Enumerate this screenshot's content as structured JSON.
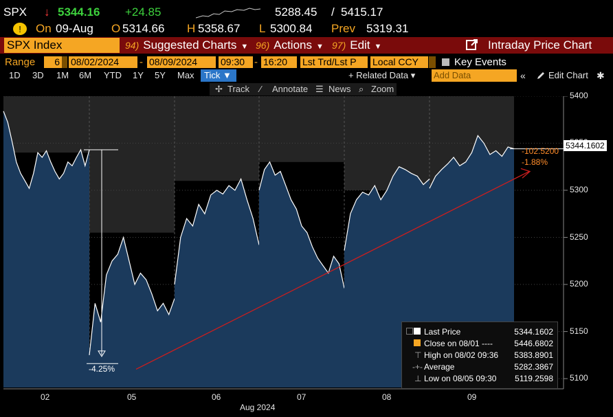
{
  "header": {
    "ticker": "SPX",
    "arrow": "↓",
    "last": "5344.16",
    "change": "+24.85",
    "range_low": "5288.45",
    "separator": "/",
    "range_high": "5415.17",
    "status_label": "On",
    "date": "09-Aug",
    "open_label": "O",
    "open": "5314.66",
    "high_label": "H",
    "high": "5358.67",
    "low_label": "L",
    "low": "5300.84",
    "prev_label": "Prev",
    "prev": "5319.31"
  },
  "menu": {
    "security": "SPX Index",
    "suggested": {
      "num": "94)",
      "label": "Suggested Charts"
    },
    "actions": {
      "num": "96)",
      "label": "Actions"
    },
    "edit": {
      "num": "97)",
      "label": "Edit"
    },
    "title": "Intraday Price Chart"
  },
  "options": {
    "range_label": "Range",
    "range_value": "6",
    "start_date": "08/02/2024",
    "dash": "-",
    "end_date": "08/09/2024",
    "start_time": "09:30",
    "end_time": "16:20",
    "price_type": "Lst Trd/Lst P",
    "currency": "Local CCY",
    "key_events": "Key Events"
  },
  "periods": [
    "1D",
    "3D",
    "1M",
    "6M",
    "YTD",
    "1Y",
    "5Y",
    "Max"
  ],
  "tick_button": "Tick ▼",
  "related_data": "+ Related Data ▾",
  "add_data_placeholder": "Add Data",
  "edit_chart": "Edit Chart",
  "tools": {
    "track": "Track",
    "annotate": "Annotate",
    "news": "News",
    "zoom": "Zoom"
  },
  "annotations": {
    "last_price_tag": "5344.1602",
    "change_pts": "-102.5200",
    "change_pct": "-1.88%",
    "drop_pct": "-4.25%"
  },
  "legend": {
    "last_price": {
      "label": "Last Price",
      "value": "5344.1602"
    },
    "close": {
      "label": "Close on 08/01 ----",
      "value": "5446.6802"
    },
    "high": {
      "label": "High on 08/02 09:36",
      "value": "5383.8901"
    },
    "average": {
      "label": "Average",
      "value": "5282.3867"
    },
    "low": {
      "label": "Low on 08/05 09:30",
      "value": "5119.2598"
    }
  },
  "chart_data": {
    "type": "area",
    "xlabel": "Aug 2024",
    "x_ticks": [
      "02",
      "05",
      "06",
      "07",
      "08",
      "09"
    ],
    "y_ticks": [
      5100,
      5150,
      5200,
      5250,
      5300,
      5350,
      5400
    ],
    "ylim": [
      5095,
      5405
    ],
    "days": [
      {
        "day": "02",
        "values": [
          5384,
          5372,
          5352,
          5330,
          5318,
          5310,
          5302,
          5318,
          5340,
          5335,
          5342,
          5330,
          5320,
          5312,
          5318,
          5330,
          5326,
          5335,
          5343,
          5326,
          5343
        ]
      },
      {
        "day": "05",
        "values": [
          5125,
          5180,
          5160,
          5210,
          5225,
          5232,
          5250,
          5225,
          5200,
          5212,
          5205,
          5190,
          5172,
          5180,
          5168,
          5185
        ]
      },
      {
        "day": "06",
        "values": [
          5200,
          5250,
          5270,
          5262,
          5285,
          5275,
          5295,
          5300,
          5296,
          5305,
          5300,
          5312,
          5290,
          5270,
          5242
        ]
      },
      {
        "day": "07",
        "values": [
          5300,
          5322,
          5330,
          5316,
          5320,
          5305,
          5290,
          5280,
          5262,
          5255,
          5240,
          5228,
          5220,
          5212,
          5230,
          5222,
          5196
        ]
      },
      {
        "day": "08",
        "values": [
          5236,
          5275,
          5290,
          5298,
          5295,
          5305,
          5290,
          5300,
          5315,
          5325,
          5322,
          5318,
          5315,
          5306,
          5312
        ]
      },
      {
        "day": "09",
        "values": [
          5302,
          5315,
          5322,
          5328,
          5335,
          5326,
          5330,
          5340,
          5358,
          5350,
          5338,
          5342,
          5336,
          5346,
          5344
        ]
      }
    ],
    "colors": {
      "area": "#1b3a5c",
      "line": "#ffffff",
      "trend": "#cc1e1e",
      "shade": "#252525"
    }
  }
}
